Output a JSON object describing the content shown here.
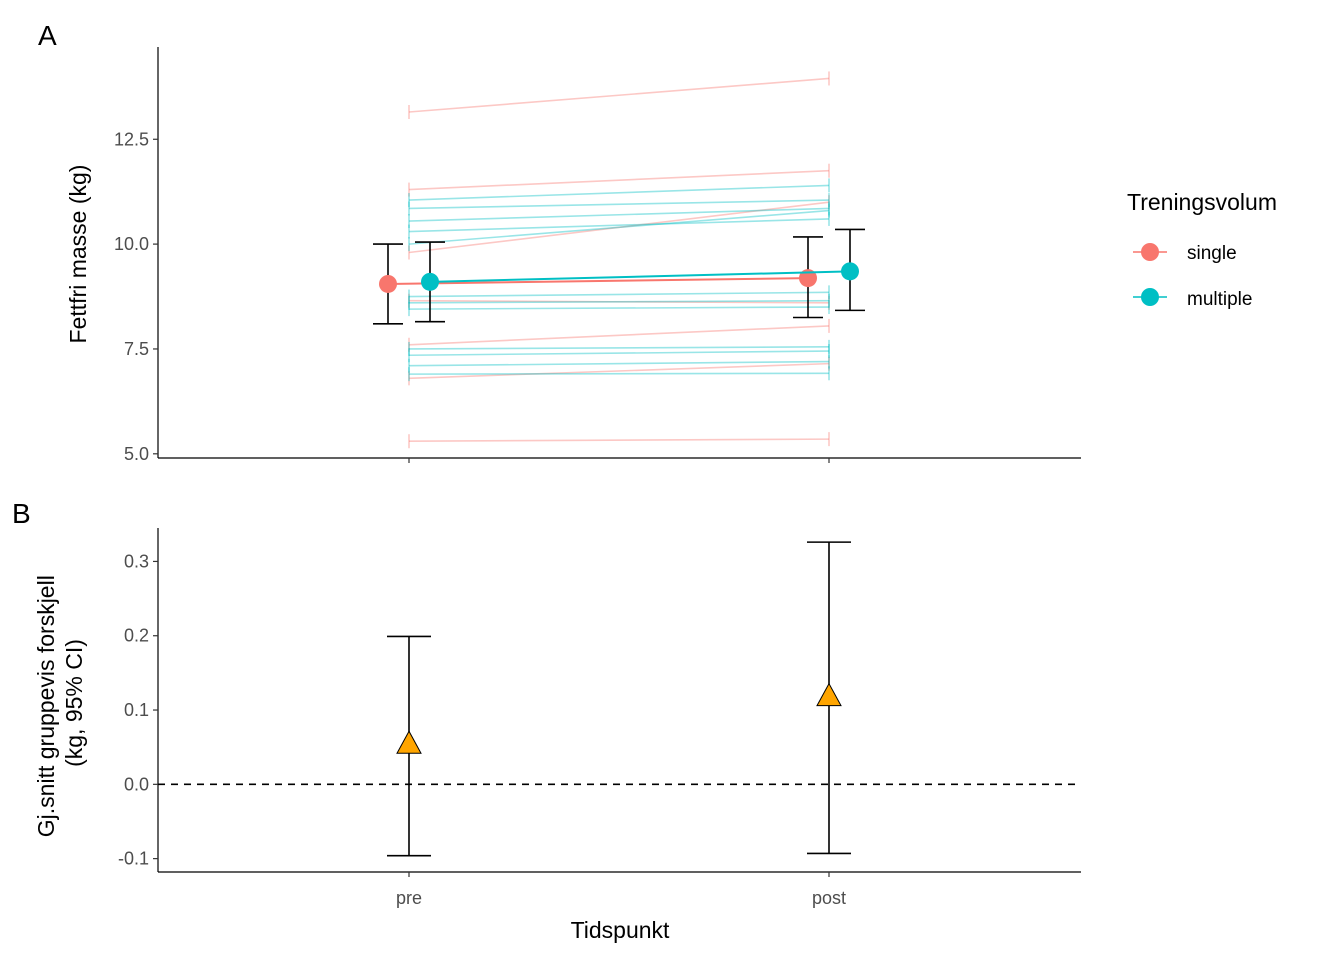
{
  "colors": {
    "single": "#F8766D",
    "multiple": "#00BFC4",
    "diff_marker": "#FFA500",
    "errorbar": "#000000"
  },
  "x_axis": {
    "title": "Tidspunkt",
    "categories": [
      "pre",
      "post"
    ]
  },
  "legend": {
    "title": "Treningsvolum",
    "items": [
      "single",
      "multiple"
    ],
    "placement": "right"
  },
  "chart_data": [
    {
      "panel": "A",
      "type": "line",
      "ylabel": "Fettfri masse (kg)",
      "ylim": [
        4.9,
        14.7
      ],
      "yticks": [
        5.0,
        7.5,
        10.0,
        12.5
      ],
      "ytick_labels": [
        "5.0",
        "7.5",
        "10.0",
        "12.5"
      ],
      "categories": [
        "pre",
        "post"
      ],
      "series": [
        {
          "name": "single",
          "mean": [
            9.05,
            9.19
          ],
          "ci_low": [
            8.1,
            8.25
          ],
          "ci_high": [
            10.0,
            10.17
          ]
        },
        {
          "name": "multiple",
          "mean": [
            9.1,
            9.35
          ],
          "ci_low": [
            8.15,
            8.42
          ],
          "ci_high": [
            10.05,
            10.35
          ]
        }
      ],
      "individuals": [
        {
          "group": "single",
          "values": [
            13.15,
            13.95
          ]
        },
        {
          "group": "single",
          "values": [
            11.3,
            11.75
          ]
        },
        {
          "group": "single",
          "values": [
            9.8,
            11.0
          ]
        },
        {
          "group": "single",
          "values": [
            8.65,
            8.6
          ]
        },
        {
          "group": "single",
          "values": [
            7.6,
            8.05
          ]
        },
        {
          "group": "single",
          "values": [
            6.8,
            7.15
          ]
        },
        {
          "group": "single",
          "values": [
            5.3,
            5.35
          ]
        },
        {
          "group": "multiple",
          "values": [
            11.05,
            11.4
          ]
        },
        {
          "group": "multiple",
          "values": [
            10.85,
            11.05
          ]
        },
        {
          "group": "multiple",
          "values": [
            10.55,
            10.85
          ]
        },
        {
          "group": "multiple",
          "values": [
            10.3,
            10.6
          ]
        },
        {
          "group": "multiple",
          "values": [
            10.0,
            10.8
          ]
        },
        {
          "group": "multiple",
          "values": [
            8.75,
            8.85
          ]
        },
        {
          "group": "multiple",
          "values": [
            8.6,
            8.65
          ]
        },
        {
          "group": "multiple",
          "values": [
            8.45,
            8.5
          ]
        },
        {
          "group": "multiple",
          "values": [
            7.5,
            7.55
          ]
        },
        {
          "group": "multiple",
          "values": [
            7.35,
            7.45
          ]
        },
        {
          "group": "multiple",
          "values": [
            7.1,
            7.2
          ]
        },
        {
          "group": "multiple",
          "values": [
            6.9,
            6.92
          ]
        }
      ]
    },
    {
      "panel": "B",
      "type": "scatter",
      "ylabel_lines": [
        "Gj.snitt gruppevis forskjell",
        "(kg, 95% CI)"
      ],
      "ylim": [
        -0.118,
        0.345
      ],
      "yticks": [
        -0.1,
        0.0,
        0.1,
        0.2,
        0.3
      ],
      "ytick_labels": [
        "-0.1",
        "0.0",
        "0.1",
        "0.2",
        "0.3"
      ],
      "categories": [
        "pre",
        "post"
      ],
      "estimate": [
        0.054,
        0.118
      ],
      "ci_low": [
        -0.096,
        -0.093
      ],
      "ci_high": [
        0.199,
        0.326
      ],
      "reference_line": 0.0
    }
  ]
}
